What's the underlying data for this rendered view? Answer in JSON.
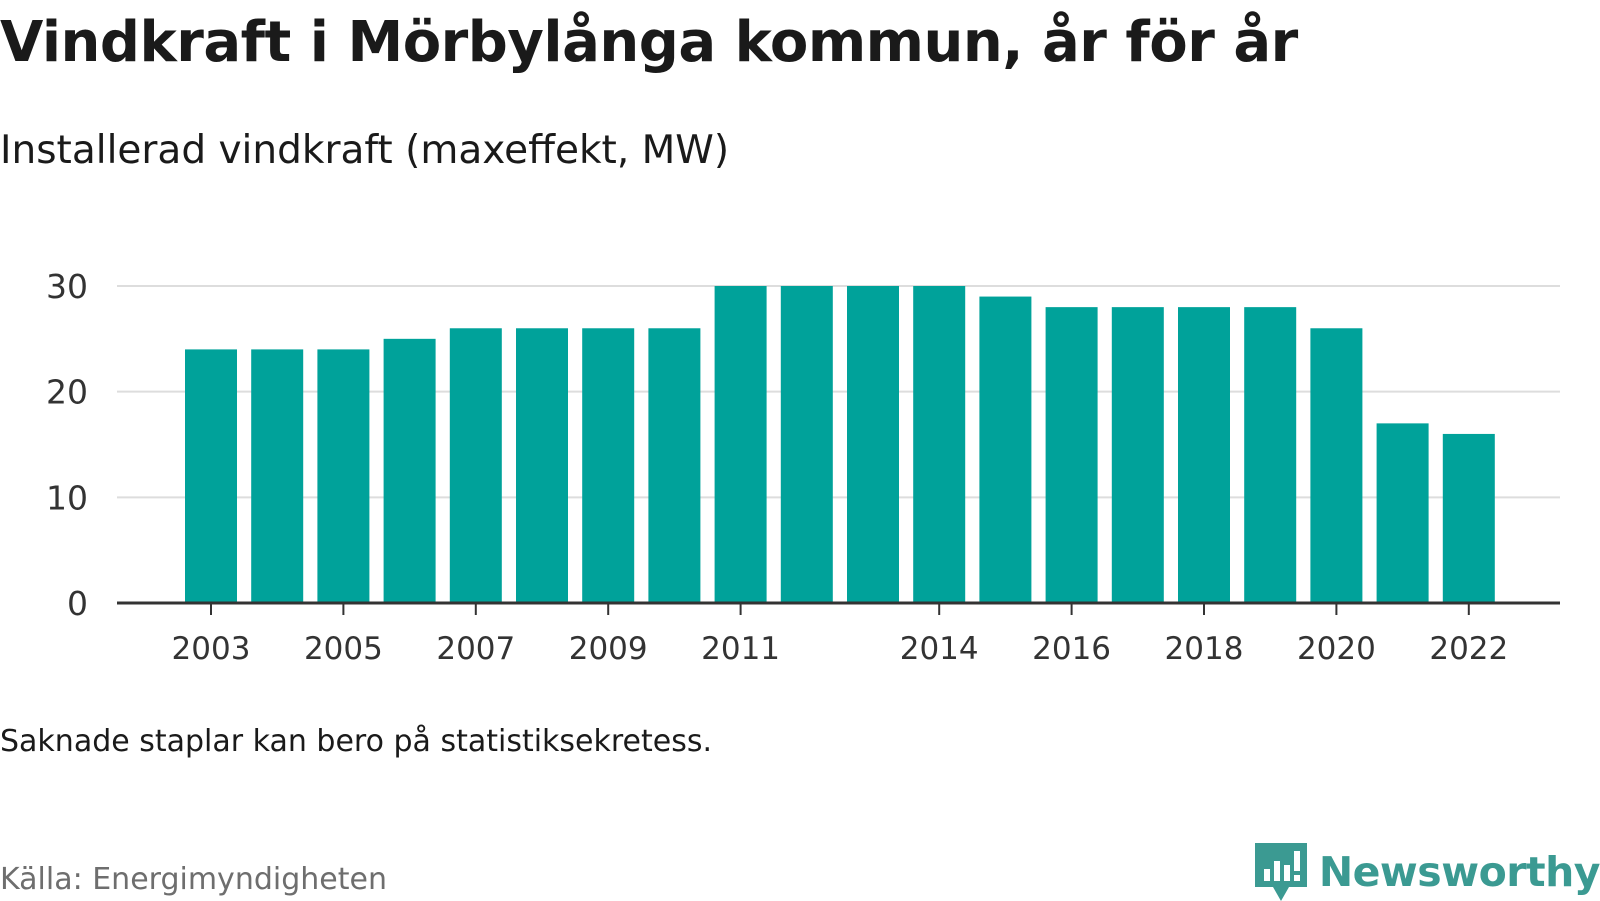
{
  "title": "Vindkraft i Mörbylånga kommun, år för år",
  "subtitle": "Installerad vindkraft (maxeffekt, MW)",
  "note": "Saknade staplar kan bero på statistiksekretess.",
  "source": "Källa: Energimyndigheten",
  "brand": {
    "name": "Newsworthy",
    "icon": "newsworthy-logo-icon",
    "color": "#3b9a92"
  },
  "chart_data": {
    "type": "bar",
    "title": "Vindkraft i Mörbylånga kommun, år för år",
    "subtitle": "Installerad vindkraft (maxeffekt, MW)",
    "categories": [
      "2003",
      "2004",
      "2005",
      "2006",
      "2007",
      "2008",
      "2009",
      "2010",
      "2011",
      "2012",
      "2013",
      "2014",
      "2015",
      "2016",
      "2017",
      "2018",
      "2019",
      "2020",
      "2021",
      "2022"
    ],
    "values": [
      24,
      24,
      24,
      25,
      26,
      26,
      26,
      26,
      30,
      30,
      30,
      30,
      29,
      28,
      28,
      28,
      28,
      26,
      17,
      16
    ],
    "x_tick_labels": [
      "2003",
      "2005",
      "2007",
      "2009",
      "2011",
      "2014",
      "2016",
      "2018",
      "2020",
      "2022"
    ],
    "y_ticks": [
      0,
      10,
      20,
      30
    ],
    "ylim": [
      0,
      30
    ],
    "grid": true,
    "bar_color": "#00a29a",
    "grid_color": "#dddddd",
    "axis_color": "#333333"
  }
}
